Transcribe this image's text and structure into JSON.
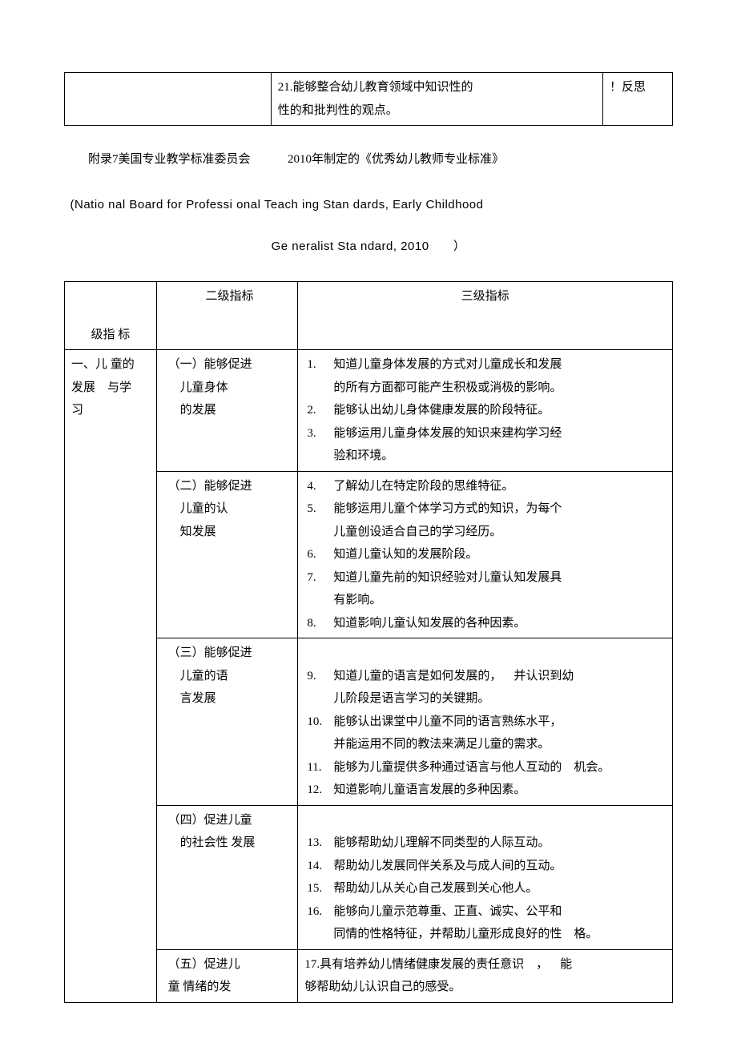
{
  "topTable": {
    "middle": "21.能够整合幼儿教育领域中知识性的\n性的和批判性的观点。",
    "right": "！反思"
  },
  "title1_a": "附录7美国专业教学标准委员会",
  "title1_b": "2010年制定的《优秀幼儿教师专业标准》",
  "title2": "(Natio nal Board for Professi onal Teach ing Stan dards, Early Childhood",
  "title3_a": "Ge neralist Sta ndard, 2010",
  "title3_b": "）",
  "header": {
    "col2": "二级指标",
    "col3": "三级指标",
    "col1": "级指 标"
  },
  "col1_primary": "一、儿 童的\n发展 与学\n习",
  "sections": [
    {
      "l2": "（一）能够促进\n 儿童身体\n 的发展",
      "items": [
        {
          "n": "1.",
          "t": "知道儿童身体发展的方式对儿童成长和发展\n的所有方面都可能产生积极或消极的影响。"
        },
        {
          "n": "2.",
          "t": "能够认出幼儿身体健康发展的阶段特征。"
        },
        {
          "n": "3.",
          "t": "能够运用儿童身体发展的知识来建构学习经\n验和环境。"
        }
      ]
    },
    {
      "l2": "（二）能够促进\n 儿童的认\n 知发展",
      "items": [
        {
          "n": "4.",
          "t": "了解幼儿在特定阶段的思维特征。"
        },
        {
          "n": "5.",
          "t": "能够运用儿童个体学习方式的知识，为每个\n儿童创设适合自己的学习经历。"
        },
        {
          "n": "6.",
          "t": "知道儿童认知的发展阶段。"
        },
        {
          "n": "7.",
          "t": "知道儿童先前的知识经验对儿童认知发展具\n有影响。"
        },
        {
          "n": "8.",
          "t": "知道影响儿童认知发展的各种因素。"
        }
      ]
    },
    {
      "l2": "（三）能够促进\n 儿童的语\n 言发展",
      "pre_blank": true,
      "items": [
        {
          "n": "9.",
          "t": "知道儿童的语言是如何发展的， 并认识到幼\n儿阶段是语言学习的关键期。"
        },
        {
          "n": "10.",
          "t": "能够认出课堂中儿童不同的语言熟练水平，\n并能运用不同的教法来满足儿童的需求。"
        },
        {
          "n": "11.",
          "t": "能够为儿童提供多种通过语言与他人互动的 机会。"
        },
        {
          "n": "12.",
          "t": "知道影响儿童语言发展的多种因素。"
        }
      ]
    },
    {
      "l2": "（四）促进儿童\n 的社会性 发展",
      "pre_blank": true,
      "items": [
        {
          "n": "13.",
          "t": "能够帮助幼儿理解不同类型的人际互动。"
        },
        {
          "n": "14.",
          "t": "帮助幼儿发展同伴关系及与成人间的互动。"
        },
        {
          "n": "15.",
          "t": "帮助幼儿从关心自己发展到关心他人。"
        },
        {
          "n": "16.",
          "t": "能够向儿童示范尊重、正直、诚实、公平和\n同情的性格特征，并帮助儿童形成良好的性 格。"
        }
      ]
    },
    {
      "l2": "（五）促进儿\n童 情绪的发",
      "items": [
        {
          "n": "17.",
          "t": "具有培养幼儿情绪健康发展的责任意识 ， 能\n够帮助幼儿认识自己的感受。",
          "nopad": true
        }
      ]
    }
  ]
}
